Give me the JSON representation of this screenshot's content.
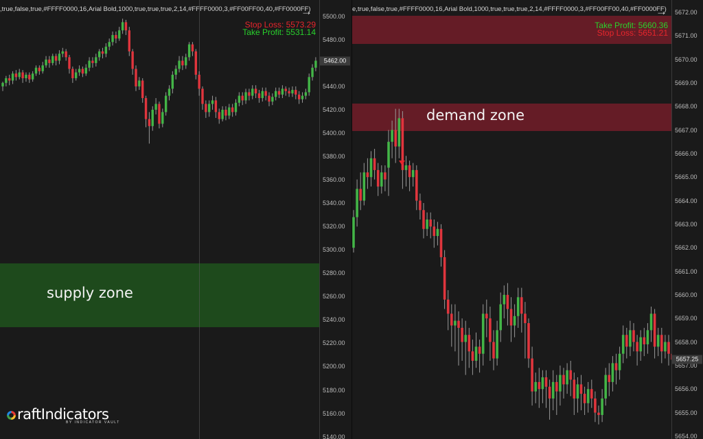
{
  "left_chart": {
    "params_text": ",true,false,true,#FFFF0000,16,Arial Bold,1000,true,true,true,2,14,#FFFF0000,3,#FF00FF00,40,#FF0000FF)",
    "arrow": "→",
    "stop_loss": "Stop Loss: 5573.29",
    "take_profit": "Take Profit: 5531.14",
    "zone_label": "supply zone",
    "zone_color": "#1e4a1c",
    "current_price": "5462.00",
    "axis_ticks": [
      "5500.00",
      "5480.00",
      "5460.00",
      "5440.00",
      "5420.00",
      "5400.00",
      "5380.00",
      "5360.00",
      "5340.00",
      "5320.00",
      "5300.00",
      "5280.00",
      "5260.00",
      "5240.00",
      "5220.00",
      "5200.00",
      "5180.00",
      "5160.00",
      "5140.00"
    ],
    "price_range": [
      5138,
      5514
    ],
    "candles": [
      [
        5440,
        5443,
        5436,
        5444
      ],
      [
        5443,
        5447,
        5440,
        5449
      ],
      [
        5447,
        5445,
        5441,
        5450
      ],
      [
        5445,
        5451,
        5442,
        5453
      ],
      [
        5451,
        5448,
        5445,
        5454
      ],
      [
        5448,
        5452,
        5446,
        5455
      ],
      [
        5452,
        5447,
        5443,
        5454
      ],
      [
        5447,
        5450,
        5444,
        5452
      ],
      [
        5450,
        5446,
        5443,
        5452
      ],
      [
        5446,
        5451,
        5444,
        5453
      ],
      [
        5451,
        5456,
        5449,
        5458
      ],
      [
        5456,
        5453,
        5450,
        5458
      ],
      [
        5453,
        5458,
        5451,
        5461
      ],
      [
        5458,
        5463,
        5456,
        5466
      ],
      [
        5463,
        5460,
        5456,
        5466
      ],
      [
        5460,
        5466,
        5458,
        5468
      ],
      [
        5466,
        5462,
        5458,
        5468
      ],
      [
        5462,
        5468,
        5459,
        5471
      ],
      [
        5468,
        5470,
        5465,
        5473
      ],
      [
        5470,
        5465,
        5462,
        5472
      ],
      [
        5465,
        5455,
        5451,
        5467
      ],
      [
        5455,
        5447,
        5443,
        5457
      ],
      [
        5447,
        5452,
        5445,
        5455
      ],
      [
        5452,
        5455,
        5449,
        5458
      ],
      [
        5455,
        5451,
        5448,
        5457
      ],
      [
        5451,
        5456,
        5449,
        5459
      ],
      [
        5456,
        5462,
        5453,
        5465
      ],
      [
        5462,
        5460,
        5456,
        5465
      ],
      [
        5460,
        5465,
        5457,
        5468
      ],
      [
        5465,
        5470,
        5462,
        5472
      ],
      [
        5470,
        5468,
        5464,
        5473
      ],
      [
        5468,
        5474,
        5465,
        5477
      ],
      [
        5474,
        5478,
        5471,
        5481
      ],
      [
        5478,
        5484,
        5475,
        5487
      ],
      [
        5484,
        5481,
        5477,
        5487
      ],
      [
        5481,
        5488,
        5479,
        5491
      ],
      [
        5488,
        5495,
        5485,
        5498
      ],
      [
        5495,
        5488,
        5484,
        5497
      ],
      [
        5488,
        5470,
        5466,
        5491
      ],
      [
        5470,
        5455,
        5450,
        5472
      ],
      [
        5455,
        5440,
        5436,
        5458
      ],
      [
        5440,
        5445,
        5437,
        5448
      ],
      [
        5445,
        5430,
        5426,
        5447
      ],
      [
        5430,
        5412,
        5405,
        5432
      ],
      [
        5412,
        5406,
        5391,
        5418
      ],
      [
        5406,
        5420,
        5402,
        5423
      ],
      [
        5420,
        5425,
        5416,
        5430
      ],
      [
        5425,
        5408,
        5404,
        5427
      ],
      [
        5408,
        5418,
        5405,
        5421
      ],
      [
        5418,
        5432,
        5415,
        5435
      ],
      [
        5432,
        5438,
        5428,
        5441
      ],
      [
        5438,
        5450,
        5434,
        5453
      ],
      [
        5450,
        5455,
        5446,
        5458
      ],
      [
        5455,
        5462,
        5452,
        5466
      ],
      [
        5462,
        5458,
        5454,
        5466
      ],
      [
        5458,
        5465,
        5455,
        5468
      ],
      [
        5465,
        5476,
        5462,
        5478
      ],
      [
        5476,
        5470,
        5466,
        5478
      ],
      [
        5470,
        5450,
        5446,
        5472
      ],
      [
        5450,
        5438,
        5432,
        5453
      ],
      [
        5438,
        5425,
        5420,
        5440
      ],
      [
        5425,
        5418,
        5413,
        5428
      ],
      [
        5418,
        5425,
        5414,
        5428
      ],
      [
        5425,
        5428,
        5420,
        5432
      ],
      [
        5428,
        5418,
        5413,
        5431
      ],
      [
        5418,
        5412,
        5408,
        5421
      ],
      [
        5412,
        5420,
        5410,
        5423
      ],
      [
        5420,
        5415,
        5411,
        5423
      ],
      [
        5415,
        5422,
        5412,
        5425
      ],
      [
        5422,
        5418,
        5414,
        5425
      ],
      [
        5418,
        5426,
        5415,
        5429
      ],
      [
        5426,
        5432,
        5423,
        5435
      ],
      [
        5432,
        5428,
        5424,
        5435
      ],
      [
        5428,
        5435,
        5425,
        5438
      ],
      [
        5435,
        5432,
        5428,
        5438
      ],
      [
        5432,
        5438,
        5429,
        5441
      ],
      [
        5438,
        5434,
        5430,
        5441
      ],
      [
        5434,
        5430,
        5426,
        5437
      ],
      [
        5430,
        5436,
        5427,
        5439
      ],
      [
        5436,
        5432,
        5428,
        5439
      ],
      [
        5432,
        5427,
        5423,
        5435
      ],
      [
        5427,
        5431,
        5424,
        5434
      ],
      [
        5431,
        5436,
        5428,
        5439
      ],
      [
        5436,
        5433,
        5430,
        5439
      ],
      [
        5433,
        5438,
        5430,
        5441
      ],
      [
        5438,
        5436,
        5432,
        5440
      ],
      [
        5436,
        5434,
        5431,
        5439
      ],
      [
        5434,
        5437,
        5431,
        5440
      ],
      [
        5437,
        5433,
        5429,
        5440
      ],
      [
        5433,
        5429,
        5425,
        5436
      ],
      [
        5429,
        5432,
        5426,
        5435
      ],
      [
        5432,
        5435,
        5429,
        5438
      ],
      [
        5435,
        5448,
        5432,
        5451
      ],
      [
        5448,
        5456,
        5445,
        5459
      ],
      [
        5456,
        5462,
        5453,
        5465
      ]
    ]
  },
  "right_chart": {
    "params_text": "e,true,false,true,#FFFF0000,16,Arial Bold,1000,true,true,true,2,14,#FFFF0000,3,#FF00FF00,40,#FF0000FF)",
    "arrow": "→",
    "take_profit": "Take Profit: 5660.36",
    "stop_loss": "Stop Loss: 5651.21",
    "zone_label": "demand zone",
    "zone_color": "#651c26",
    "current_price": "5657.25",
    "axis_ticks": [
      "5672.00",
      "5671.00",
      "5670.00",
      "5669.00",
      "5668.00",
      "5667.00",
      "5666.00",
      "5665.00",
      "5664.00",
      "5663.00",
      "5662.00",
      "5661.00",
      "5660.00",
      "5659.00",
      "5658.00",
      "5657.00",
      "5656.00",
      "5655.00",
      "5654.00"
    ],
    "price_range": [
      5653.88,
      5672.52
    ],
    "candles": [
      [
        5662.0,
        5663.3,
        5661.8,
        5663.6
      ],
      [
        5663.3,
        5664.5,
        5662.9,
        5664.9
      ],
      [
        5664.5,
        5664.0,
        5663.6,
        5665.2
      ],
      [
        5664.0,
        5665.2,
        5663.8,
        5665.6
      ],
      [
        5665.2,
        5665.0,
        5664.5,
        5665.8
      ],
      [
        5665.0,
        5665.8,
        5664.6,
        5666.1
      ],
      [
        5665.8,
        5665.3,
        5664.9,
        5666.2
      ],
      [
        5665.3,
        5664.6,
        5664.2,
        5665.6
      ],
      [
        5664.6,
        5665.2,
        5664.3,
        5665.5
      ],
      [
        5665.2,
        5664.9,
        5664.4,
        5665.5
      ],
      [
        5665.4,
        5666.5,
        5664.2,
        5667.0
      ],
      [
        5666.5,
        5667.0,
        5665.8,
        5667.4
      ],
      [
        5667.0,
        5666.3,
        5665.6,
        5667.9
      ],
      [
        5666.3,
        5667.5,
        5665.8,
        5667.9
      ],
      [
        5667.5,
        5665.3,
        5664.5,
        5667.8
      ],
      [
        5665.3,
        5665.5,
        5664.6,
        5665.9
      ],
      [
        5665.5,
        5665.0,
        5664.4,
        5665.7
      ],
      [
        5665.0,
        5665.3,
        5664.6,
        5665.6
      ],
      [
        5665.3,
        5664.0,
        5663.6,
        5665.5
      ],
      [
        5664.0,
        5663.6,
        5663.2,
        5664.3
      ],
      [
        5663.6,
        5662.8,
        5662.4,
        5663.9
      ],
      [
        5662.8,
        5663.2,
        5662.5,
        5663.5
      ],
      [
        5663.2,
        5662.9,
        5662.4,
        5663.5
      ],
      [
        5662.9,
        5662.5,
        5662.0,
        5663.2
      ],
      [
        5662.5,
        5662.8,
        5662.1,
        5663.1
      ],
      [
        5662.8,
        5661.6,
        5661.2,
        5663.0
      ],
      [
        5661.6,
        5659.8,
        5659.4,
        5661.9
      ],
      [
        5659.8,
        5659.2,
        5658.5,
        5660.2
      ],
      [
        5659.2,
        5658.7,
        5657.8,
        5659.6
      ],
      [
        5658.7,
        5658.9,
        5657.6,
        5659.6
      ],
      [
        5658.9,
        5658.6,
        5657.0,
        5659.3
      ],
      [
        5658.6,
        5658.0,
        5657.2,
        5659.0
      ],
      [
        5658.0,
        5658.3,
        5656.6,
        5658.9
      ],
      [
        5658.3,
        5657.6,
        5656.9,
        5658.6
      ],
      [
        5657.6,
        5657.2,
        5656.6,
        5658.1
      ],
      [
        5657.2,
        5657.8,
        5656.9,
        5658.4
      ],
      [
        5657.8,
        5657.5,
        5656.7,
        5658.1
      ],
      [
        5657.5,
        5659.2,
        5657.0,
        5659.6
      ],
      [
        5659.2,
        5659.0,
        5658.2,
        5659.8
      ],
      [
        5659.0,
        5658.0,
        5657.2,
        5659.5
      ],
      [
        5658.0,
        5657.3,
        5656.8,
        5658.5
      ],
      [
        5657.3,
        5658.5,
        5657.0,
        5658.9
      ],
      [
        5658.5,
        5659.6,
        5658.0,
        5660.1
      ],
      [
        5659.6,
        5660.0,
        5659.0,
        5660.4
      ],
      [
        5660.0,
        5659.4,
        5658.7,
        5660.5
      ],
      [
        5659.4,
        5658.7,
        5658.0,
        5659.9
      ],
      [
        5658.7,
        5659.1,
        5658.2,
        5659.6
      ],
      [
        5659.1,
        5659.9,
        5658.6,
        5660.3
      ],
      [
        5659.9,
        5659.2,
        5658.4,
        5660.3
      ],
      [
        5659.2,
        5658.8,
        5657.3,
        5659.7
      ],
      [
        5658.8,
        5657.3,
        5656.9,
        5659.0
      ],
      [
        5657.3,
        5655.9,
        5655.3,
        5657.8
      ],
      [
        5655.9,
        5656.3,
        5655.4,
        5656.7
      ],
      [
        5656.3,
        5656.0,
        5655.2,
        5656.9
      ],
      [
        5656.0,
        5656.5,
        5655.4,
        5656.8
      ],
      [
        5656.5,
        5656.1,
        5655.2,
        5656.8
      ],
      [
        5656.1,
        5655.6,
        5654.7,
        5656.4
      ],
      [
        5655.6,
        5656.3,
        5655.1,
        5656.8
      ],
      [
        5656.3,
        5655.9,
        5654.9,
        5656.6
      ],
      [
        5655.9,
        5656.6,
        5655.3,
        5657.0
      ],
      [
        5656.6,
        5656.2,
        5655.6,
        5656.9
      ],
      [
        5656.2,
        5656.8,
        5655.8,
        5657.1
      ],
      [
        5656.8,
        5656.4,
        5655.7,
        5657.2
      ],
      [
        5656.4,
        5655.6,
        5654.9,
        5656.7
      ],
      [
        5655.6,
        5656.2,
        5655.0,
        5656.5
      ],
      [
        5656.2,
        5655.8,
        5655.1,
        5656.6
      ],
      [
        5655.8,
        5655.4,
        5654.9,
        5656.1
      ],
      [
        5655.4,
        5656.0,
        5655.0,
        5656.3
      ],
      [
        5656.0,
        5655.6,
        5655.2,
        5656.4
      ],
      [
        5655.6,
        5655.0,
        5654.6,
        5655.9
      ],
      [
        5655.0,
        5654.9,
        5654.5,
        5655.3
      ],
      [
        5654.9,
        5655.6,
        5654.6,
        5656.0
      ],
      [
        5655.6,
        5656.6,
        5655.3,
        5656.9
      ],
      [
        5656.6,
        5656.3,
        5655.7,
        5657.1
      ],
      [
        5656.3,
        5657.1,
        5655.9,
        5657.4
      ],
      [
        5657.1,
        5656.8,
        5656.2,
        5657.5
      ],
      [
        5656.8,
        5657.5,
        5656.4,
        5657.8
      ],
      [
        5657.5,
        5658.3,
        5657.1,
        5658.7
      ],
      [
        5658.3,
        5657.8,
        5657.3,
        5658.6
      ],
      [
        5657.8,
        5658.5,
        5657.4,
        5658.9
      ],
      [
        5658.5,
        5658.0,
        5657.6,
        5658.8
      ],
      [
        5658.0,
        5657.6,
        5657.0,
        5658.3
      ],
      [
        5657.6,
        5658.2,
        5657.2,
        5658.5
      ],
      [
        5658.2,
        5657.9,
        5657.4,
        5658.6
      ],
      [
        5657.9,
        5658.5,
        5657.5,
        5658.8
      ],
      [
        5658.5,
        5659.2,
        5658.0,
        5659.5
      ],
      [
        5659.2,
        5657.8,
        5657.3,
        5659.4
      ],
      [
        5657.8,
        5658.3,
        5657.4,
        5658.6
      ],
      [
        5658.3,
        5657.6,
        5657.1,
        5658.6
      ],
      [
        5657.6,
        5658.0,
        5657.3,
        5658.3
      ],
      [
        5658.0,
        5657.5,
        5657.0,
        5658.3
      ],
      [
        5657.5,
        5657.25,
        5656.9,
        5657.8
      ]
    ]
  },
  "logo": {
    "name": "raftIndicators",
    "tagline": "BY INDICATOR VAULT"
  },
  "colors": {
    "bull": "#43b547",
    "bear": "#e0353d",
    "wick": "#9a9a9a",
    "stop_loss": "#e8262c",
    "take_profit": "#29d22c"
  }
}
